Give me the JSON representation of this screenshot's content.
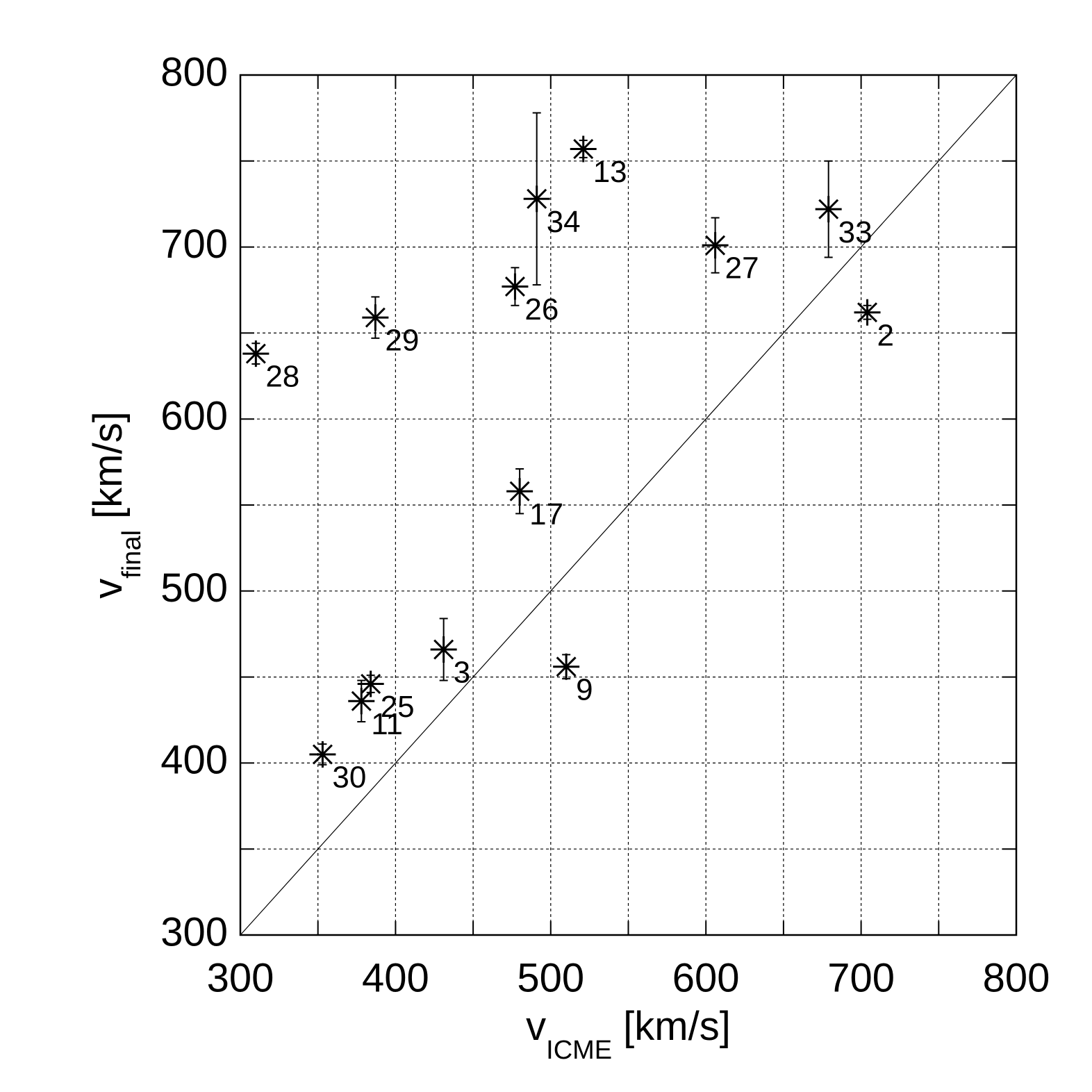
{
  "chart_data": {
    "type": "scatter",
    "xlabel": {
      "main": "v",
      "sub": "ICME",
      "unit": "[km/s]"
    },
    "ylabel": {
      "main": "v",
      "sub": "final",
      "unit": "[km/s]"
    },
    "xlim": [
      300,
      800
    ],
    "ylim": [
      300,
      800
    ],
    "xticks": [
      300,
      400,
      500,
      600,
      700,
      800
    ],
    "yticks": [
      300,
      400,
      500,
      600,
      700,
      800
    ],
    "xminorticks": [
      350,
      450,
      550,
      650,
      750
    ],
    "yminorticks": [
      350,
      450,
      550,
      650,
      750
    ],
    "grid": true,
    "identity_line": true,
    "color": "#000000",
    "series": [
      {
        "labels": [
          "28",
          "29",
          "30",
          "11",
          "25",
          "3",
          "17",
          "26",
          "34",
          "13",
          "9",
          "27",
          "33",
          "2"
        ],
        "x": [
          310,
          387,
          353,
          378,
          384,
          431,
          480,
          477,
          491,
          521,
          510,
          606,
          679,
          704
        ],
        "values": [
          638,
          659,
          405,
          436,
          446,
          466,
          558,
          677,
          728,
          757,
          456,
          701,
          722,
          662
        ],
        "errors": [
          6,
          12,
          6,
          12,
          5,
          18,
          13,
          11,
          50,
          5,
          7,
          16,
          28,
          4
        ]
      }
    ]
  }
}
